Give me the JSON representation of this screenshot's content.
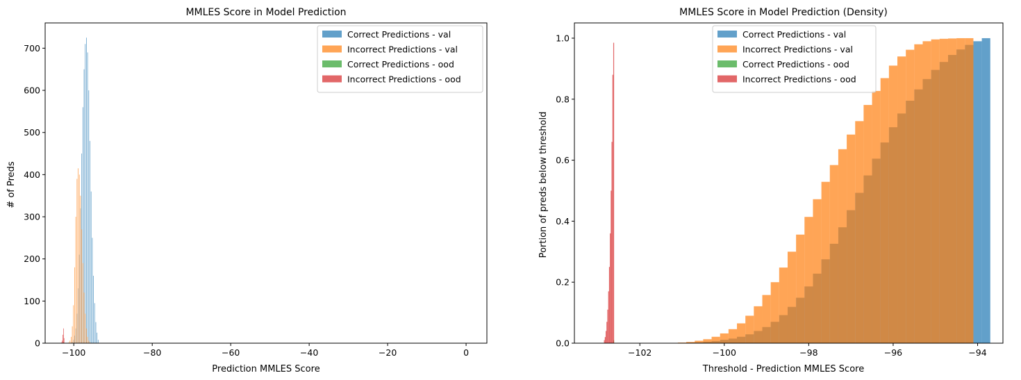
{
  "colors": {
    "val_correct": "#1f77b4",
    "val_incorrect": "#ff7f0e",
    "ood_correct": "#2ca02c",
    "ood_incorrect": "#d62728"
  },
  "chart_data": [
    {
      "type": "histogram",
      "title": "MMLES Score in Model Prediction",
      "xlabel": "Prediction MMLES Score",
      "ylabel": "# of Preds",
      "xlim": [
        -107.3,
        5.3
      ],
      "ylim": [
        0,
        760
      ],
      "xticks": [
        -100,
        -80,
        -60,
        -40,
        -20,
        0
      ],
      "xtick_labels": [
        "−100",
        "−80",
        "−60",
        "−40",
        "−20",
        "0"
      ],
      "yticks": [
        0,
        100,
        200,
        300,
        400,
        500,
        600,
        700
      ],
      "ytick_labels": [
        "0",
        "100",
        "200",
        "300",
        "400",
        "500",
        "600",
        "700"
      ],
      "legend_position": "upper right",
      "grid": false,
      "series": [
        {
          "name": "Correct Predictions - val",
          "color_key": "val_correct",
          "bin_width": 0.1,
          "x": [
            -100.4,
            -100.1,
            -99.8,
            -99.5,
            -99.2,
            -98.9,
            -98.6,
            -98.3,
            -98.0,
            -97.7,
            -97.4,
            -97.1,
            -96.8,
            -96.5,
            -96.2,
            -95.9,
            -95.6,
            -95.3,
            -95.0,
            -94.7,
            -94.4,
            -94.1,
            -93.8
          ],
          "values": [
            3,
            8,
            18,
            35,
            70,
            130,
            210,
            320,
            450,
            560,
            650,
            710,
            725,
            690,
            600,
            480,
            360,
            250,
            160,
            95,
            50,
            25,
            8
          ]
        },
        {
          "name": "Incorrect Predictions - val",
          "color_key": "val_incorrect",
          "bin_width": 0.1,
          "x": [
            -101.3,
            -101.0,
            -100.7,
            -100.4,
            -100.1,
            -99.8,
            -99.5,
            -99.2,
            -98.9,
            -98.6,
            -98.3,
            -98.0,
            -97.7,
            -97.4,
            -97.1,
            -96.8,
            -96.5,
            -96.2,
            -95.9
          ],
          "values": [
            2,
            6,
            15,
            40,
            90,
            180,
            300,
            390,
            415,
            400,
            350,
            270,
            190,
            120,
            70,
            35,
            15,
            6,
            2
          ]
        },
        {
          "name": "Correct Predictions - ood",
          "color_key": "ood_correct",
          "bin_width": 0.1,
          "x": [
            -102.65
          ],
          "values": [
            2
          ]
        },
        {
          "name": "Incorrect Predictions - ood",
          "color_key": "ood_incorrect",
          "bin_width": 0.1,
          "x": [
            -103.1,
            -102.95,
            -102.8,
            -102.65,
            -102.5
          ],
          "values": [
            2,
            6,
            20,
            35,
            12
          ]
        }
      ]
    },
    {
      "type": "histogram",
      "title": "MMLES Score in Model Prediction (Density)",
      "xlabel": "Threshold - Prediction MMLES Score",
      "ylabel": "Portion of preds below threshold",
      "xlim": [
        -103.55,
        -93.4
      ],
      "ylim": [
        0,
        1.05
      ],
      "xticks": [
        -102,
        -100,
        -98,
        -96,
        -94
      ],
      "xtick_labels": [
        "−102",
        "−100",
        "−98",
        "−96",
        "−94"
      ],
      "yticks": [
        0.0,
        0.2,
        0.4,
        0.6,
        0.8,
        1.0
      ],
      "ytick_labels": [
        "0.0",
        "0.2",
        "0.4",
        "0.6",
        "0.8",
        "1.0"
      ],
      "legend_position": "upper center",
      "grid": false,
      "series": [
        {
          "name": "Correct Predictions - val",
          "color_key": "val_correct",
          "bin_width": 0.2,
          "x": [
            -101.0,
            -100.8,
            -100.6,
            -100.4,
            -100.2,
            -100.0,
            -99.8,
            -99.6,
            -99.4,
            -99.2,
            -99.0,
            -98.8,
            -98.6,
            -98.4,
            -98.2,
            -98.0,
            -97.8,
            -97.6,
            -97.4,
            -97.2,
            -97.0,
            -96.8,
            -96.6,
            -96.4,
            -96.2,
            -96.0,
            -95.8,
            -95.6,
            -95.4,
            -95.2,
            -95.0,
            -94.8,
            -94.6,
            -94.4,
            -94.2,
            -94.0,
            -93.8
          ],
          "values": [
            0.001,
            0.002,
            0.003,
            0.005,
            0.007,
            0.011,
            0.015,
            0.021,
            0.029,
            0.04,
            0.053,
            0.07,
            0.092,
            0.119,
            0.149,
            0.186,
            0.228,
            0.275,
            0.326,
            0.38,
            0.436,
            0.493,
            0.55,
            0.605,
            0.658,
            0.708,
            0.753,
            0.795,
            0.832,
            0.866,
            0.896,
            0.922,
            0.945,
            0.963,
            0.978,
            0.99,
            1.0
          ]
        },
        {
          "name": "Incorrect Predictions - val",
          "color_key": "val_incorrect",
          "bin_width": 0.2,
          "x": [
            -101.0,
            -100.8,
            -100.6,
            -100.4,
            -100.2,
            -100.0,
            -99.8,
            -99.6,
            -99.4,
            -99.2,
            -99.0,
            -98.8,
            -98.6,
            -98.4,
            -98.2,
            -98.0,
            -97.8,
            -97.6,
            -97.4,
            -97.2,
            -97.0,
            -96.8,
            -96.6,
            -96.4,
            -96.2,
            -96.0,
            -95.8,
            -95.6,
            -95.4,
            -95.2,
            -95.0,
            -94.8,
            -94.6,
            -94.4,
            -94.2
          ],
          "values": [
            0.002,
            0.004,
            0.008,
            0.013,
            0.021,
            0.032,
            0.046,
            0.065,
            0.09,
            0.121,
            0.158,
            0.2,
            0.248,
            0.3,
            0.356,
            0.414,
            0.472,
            0.529,
            0.584,
            0.636,
            0.684,
            0.728,
            0.781,
            0.827,
            0.869,
            0.91,
            0.94,
            0.962,
            0.98,
            0.99,
            0.996,
            0.998,
            0.999,
            1.0,
            1.0
          ]
        },
        {
          "name": "Correct Predictions - ood",
          "color_key": "ood_correct",
          "bin_width": 0.02,
          "x": [
            -102.62
          ],
          "values": [
            0.01
          ]
        },
        {
          "name": "Incorrect Predictions - ood",
          "color_key": "ood_incorrect",
          "bin_width": 0.02,
          "x": [
            -102.84,
            -102.82,
            -102.8,
            -102.78,
            -102.76,
            -102.74,
            -102.72,
            -102.7,
            -102.68,
            -102.66,
            -102.64,
            -102.62
          ],
          "values": [
            0.01,
            0.02,
            0.04,
            0.07,
            0.11,
            0.17,
            0.25,
            0.36,
            0.5,
            0.66,
            0.88,
            0.985
          ]
        }
      ]
    }
  ]
}
